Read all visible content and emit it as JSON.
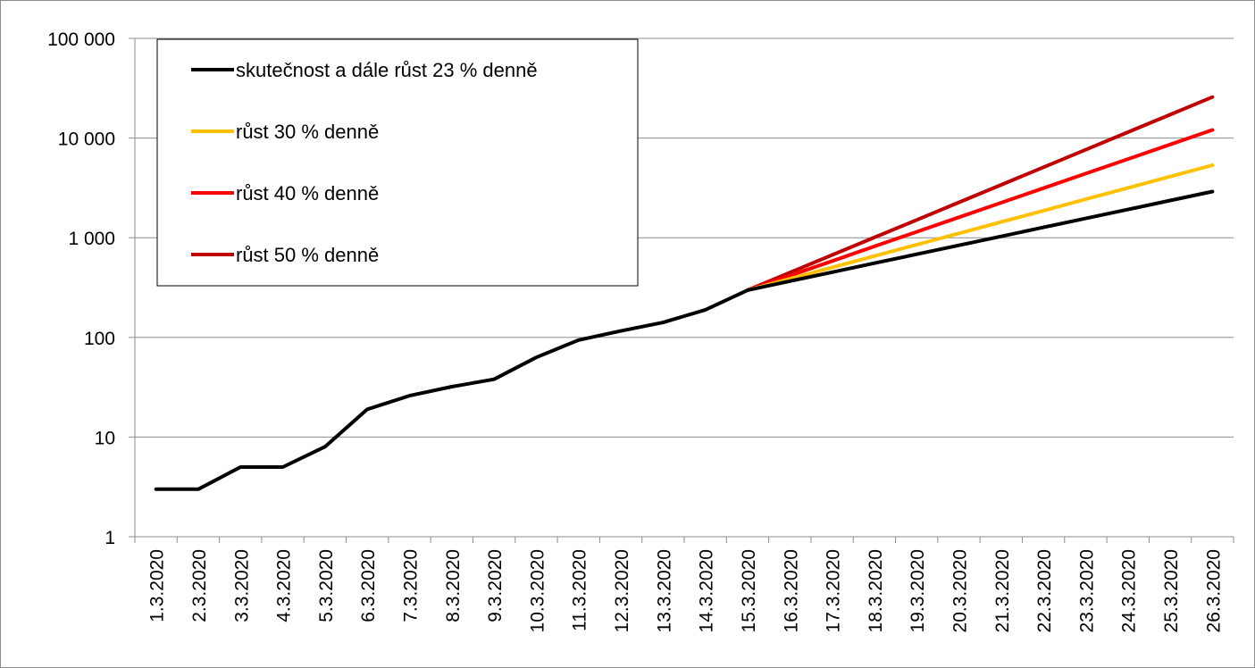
{
  "chart_data": {
    "type": "line",
    "title": "",
    "xlabel": "",
    "ylabel": "",
    "yscale": "log",
    "ylim": [
      1,
      100000
    ],
    "yticks": [
      1,
      10,
      100,
      1000,
      10000,
      100000
    ],
    "ytick_labels": [
      "1",
      "10",
      "100",
      "1 000",
      "10 000",
      "100 000"
    ],
    "grid": "horizontal",
    "legend_position": "top-left",
    "categories": [
      "1.3.2020",
      "2.3.2020",
      "3.3.2020",
      "4.3.2020",
      "5.3.2020",
      "6.3.2020",
      "7.3.2020",
      "8.3.2020",
      "9.3.2020",
      "10.3.2020",
      "11.3.2020",
      "12.3.2020",
      "13.3.2020",
      "14.3.2020",
      "15.3.2020",
      "16.3.2020",
      "17.3.2020",
      "18.3.2020",
      "19.3.2020",
      "20.3.2020",
      "21.3.2020",
      "22.3.2020",
      "23.3.2020",
      "24.3.2020",
      "25.3.2020",
      "26.3.2020"
    ],
    "series": [
      {
        "name": "skutečnost a dále růst 23 % denně",
        "color": "#000000",
        "values": [
          3,
          3,
          5,
          5,
          8,
          19,
          26,
          32,
          38,
          63,
          94,
          116,
          141,
          189,
          298,
          367,
          451,
          555,
          682,
          839,
          1032,
          1270,
          1562,
          1921,
          2363,
          2906
        ]
      },
      {
        "name": "růst 30 % denně",
        "color": "#ffc000",
        "values": [
          null,
          null,
          null,
          null,
          null,
          null,
          null,
          null,
          null,
          null,
          null,
          null,
          null,
          null,
          298,
          387,
          504,
          655,
          851,
          1106,
          1438,
          1870,
          2431,
          3160,
          4108,
          5341
        ]
      },
      {
        "name": "růst 40 % denně",
        "color": "#ff0000",
        "values": [
          null,
          null,
          null,
          null,
          null,
          null,
          null,
          null,
          null,
          null,
          null,
          null,
          null,
          null,
          298,
          417,
          584,
          818,
          1145,
          1603,
          2244,
          3142,
          4398,
          6158,
          8621,
          12069
        ]
      },
      {
        "name": "růst 50 % denně",
        "color": "#c00000",
        "values": [
          null,
          null,
          null,
          null,
          null,
          null,
          null,
          null,
          null,
          null,
          null,
          null,
          null,
          null,
          298,
          447,
          671,
          1006,
          1509,
          2263,
          3395,
          5092,
          7638,
          11458,
          17186,
          25780
        ]
      }
    ]
  }
}
